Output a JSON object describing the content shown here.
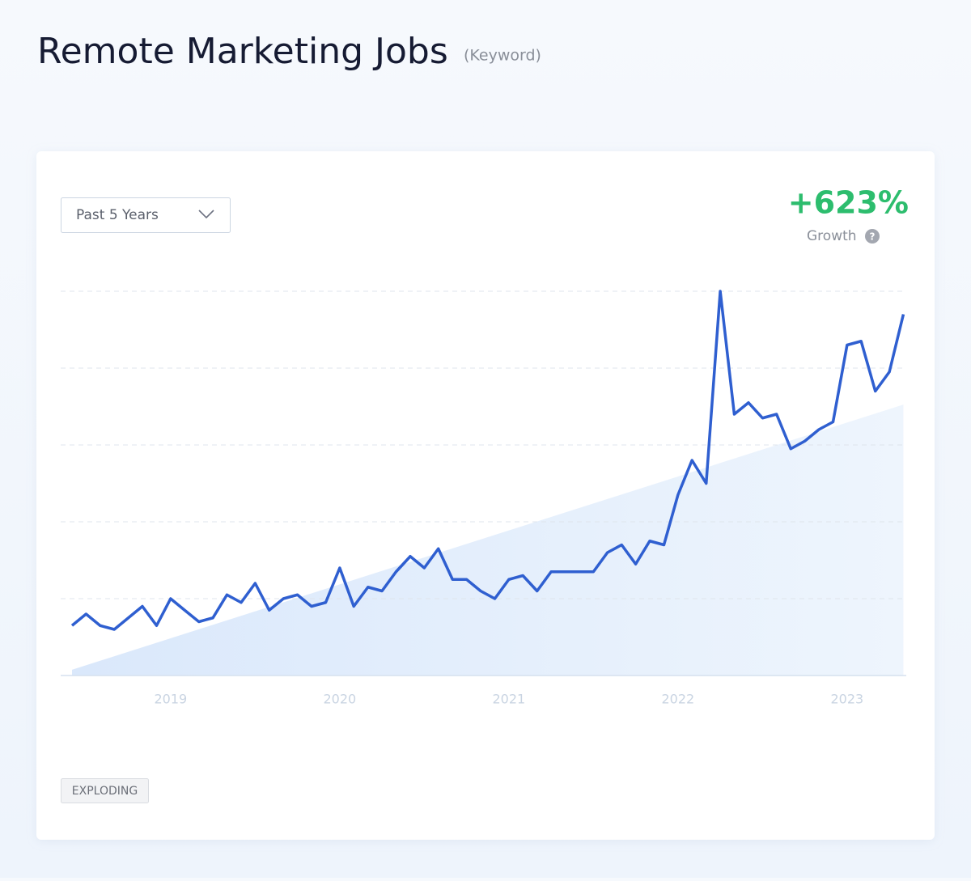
{
  "header": {
    "title": "Remote Marketing Jobs",
    "kind": "(Keyword)"
  },
  "controls": {
    "range": "Past 5 Years"
  },
  "growth": {
    "value": "+623%",
    "label": "Growth",
    "help": "?"
  },
  "badge": "EXPLODING",
  "chart_data": {
    "type": "line",
    "x": [
      2018.417,
      2018.5,
      2018.583,
      2018.667,
      2018.75,
      2018.833,
      2018.917,
      2019,
      2019.083,
      2019.167,
      2019.25,
      2019.333,
      2019.417,
      2019.5,
      2019.583,
      2019.667,
      2019.75,
      2019.833,
      2019.917,
      2020,
      2020.083,
      2020.167,
      2020.25,
      2020.333,
      2020.417,
      2020.5,
      2020.583,
      2020.667,
      2020.75,
      2020.833,
      2020.917,
      2021,
      2021.083,
      2021.167,
      2021.25,
      2021.333,
      2021.417,
      2021.5,
      2021.583,
      2021.667,
      2021.75,
      2021.833,
      2021.917,
      2022,
      2022.083,
      2022.167,
      2022.25,
      2022.333,
      2022.417,
      2022.5,
      2022.583,
      2022.667,
      2022.75,
      2022.833,
      2022.917,
      2023,
      2023.083,
      2023.167,
      2023.25,
      2023.333
    ],
    "series": [
      {
        "color": "#2f5fd0",
        "values": [
          13,
          16,
          13,
          12,
          15,
          18,
          13,
          20,
          17,
          14,
          15,
          21,
          19,
          24,
          17,
          20,
          21,
          18,
          19,
          28,
          18,
          23,
          22,
          27,
          31,
          28,
          33,
          25,
          25,
          22,
          20,
          25,
          26,
          22,
          27,
          27,
          27,
          27,
          32,
          34,
          29,
          35,
          34,
          47,
          56,
          50,
          100,
          68,
          71,
          67,
          68,
          59,
          61,
          64,
          66,
          86,
          87,
          74,
          79,
          94
        ]
      }
    ],
    "trend": {
      "x": [
        2018.417,
        2023.333
      ],
      "values": [
        1.5,
        70.5
      ],
      "color": "#dce9fb"
    },
    "xlim": [
      2018.35,
      2023.35
    ],
    "xticks": [
      2019,
      2020,
      2021,
      2022,
      2023
    ],
    "ylim": [
      0,
      100
    ],
    "yticks": [
      0,
      20,
      40,
      60,
      80,
      100
    ],
    "grid": true
  }
}
